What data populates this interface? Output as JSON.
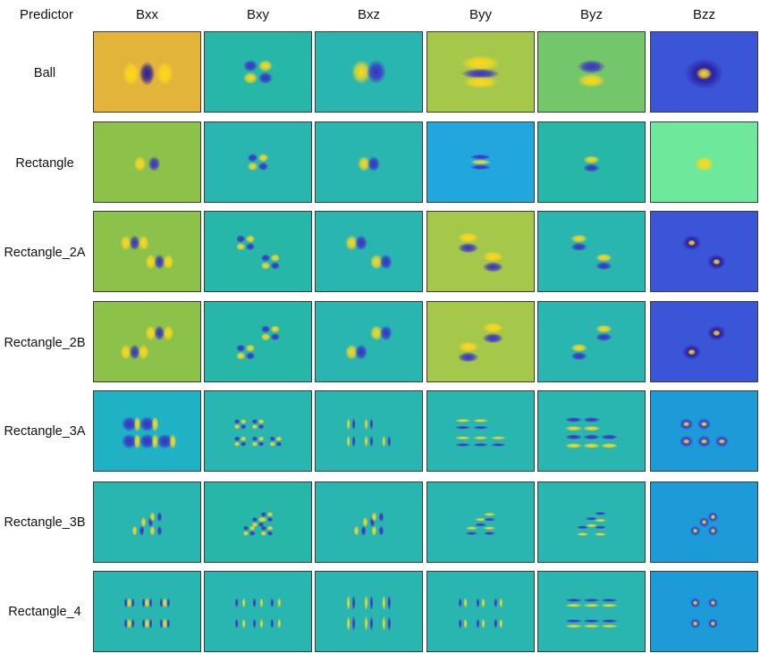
{
  "header": {
    "corner": "Predictor",
    "columns": [
      "Bxx",
      "Bxy",
      "Bxz",
      "Byy",
      "Byz",
      "Bzz"
    ]
  },
  "rows": [
    "Ball",
    "Rectangle",
    "Rectangle_2A",
    "Rectangle_2B",
    "Rectangle_3A",
    "Rectangle_3B",
    "Rectangle_4"
  ],
  "colors": {
    "yellow": "#f0c020",
    "orange_bg": "#e2b43a",
    "yellowgreen_bg": "#8cc24a",
    "lime_bg": "#a6c84a",
    "green_bg": "#74c66a",
    "teal_bg": "#27b7a8",
    "teal2_bg": "#2ab6b0",
    "cyan_bg": "#1fb2c4",
    "skyblue_bg": "#22a6de",
    "lightblue_bg": "#1d9ad8",
    "blue_bg": "#3a55d8",
    "mint_bg": "#6ee89a",
    "dark_blue": "#2a1a9a",
    "neg": "#3b2fc6",
    "pos": "#ffd81a"
  },
  "cells": [
    [
      "orange_bg",
      "teal_bg",
      "teal2_bg",
      "lime_bg",
      "green_bg",
      "blue_bg"
    ],
    [
      "yellowgreen_bg",
      "teal2_bg",
      "teal2_bg",
      "skyblue_bg",
      "teal_bg",
      "mint_bg"
    ],
    [
      "yellowgreen_bg",
      "teal_bg",
      "teal2_bg",
      "lime_bg",
      "teal2_bg",
      "blue_bg"
    ],
    [
      "yellowgreen_bg",
      "teal_bg",
      "teal2_bg",
      "lime_bg",
      "teal2_bg",
      "blue_bg"
    ],
    [
      "cyan_bg",
      "teal2_bg",
      "teal2_bg",
      "teal2_bg",
      "teal2_bg",
      "lightblue_bg"
    ],
    [
      "teal2_bg",
      "teal_bg",
      "teal2_bg",
      "teal2_bg",
      "teal2_bg",
      "lightblue_bg"
    ],
    [
      "teal2_bg",
      "teal2_bg",
      "teal2_bg",
      "teal2_bg",
      "teal2_bg",
      "lightblue_bg"
    ]
  ]
}
